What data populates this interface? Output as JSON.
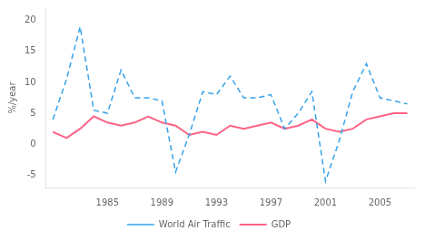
{
  "chart_data": {
    "type": "line",
    "x": [
      1981,
      1982,
      1983,
      1984,
      1985,
      1986,
      1987,
      1988,
      1989,
      1990,
      1991,
      1992,
      1993,
      1994,
      1995,
      1996,
      1997,
      1998,
      1999,
      2000,
      2001,
      2002,
      2003,
      2004,
      2005,
      2006,
      2007
    ],
    "series": [
      {
        "name": "World Air Traffic",
        "line_style": "dashed",
        "marker": "none",
        "values": [
          4.0,
          10.5,
          19.0,
          5.5,
          5.0,
          12.0,
          7.5,
          7.5,
          7.0,
          -4.5,
          1.5,
          8.5,
          8.0,
          11.0,
          7.5,
          7.5,
          8.0,
          2.5,
          5.0,
          8.5,
          -6.0,
          0.5,
          8.5,
          13.0,
          7.5,
          7.0,
          6.5
        ]
      },
      {
        "name": "GDP",
        "line_style": "solid",
        "marker": "none",
        "values": [
          2.0,
          1.0,
          2.5,
          4.5,
          3.5,
          3.0,
          3.5,
          4.5,
          3.5,
          3.0,
          1.5,
          2.0,
          1.5,
          3.0,
          2.5,
          3.0,
          3.5,
          2.5,
          3.0,
          4.0,
          2.5,
          2.0,
          2.5,
          4.0,
          4.5,
          5.0,
          5.0
        ]
      }
    ],
    "ylabel": "%/year",
    "xlim": [
      1980.5,
      2007.5
    ],
    "xticks": [
      1985,
      1989,
      1993,
      1997,
      2001,
      2005
    ],
    "ylim": [
      -7,
      22
    ],
    "yticks": [
      -5,
      0,
      5,
      10,
      15,
      20
    ],
    "grid": false,
    "legend": "bottom"
  }
}
